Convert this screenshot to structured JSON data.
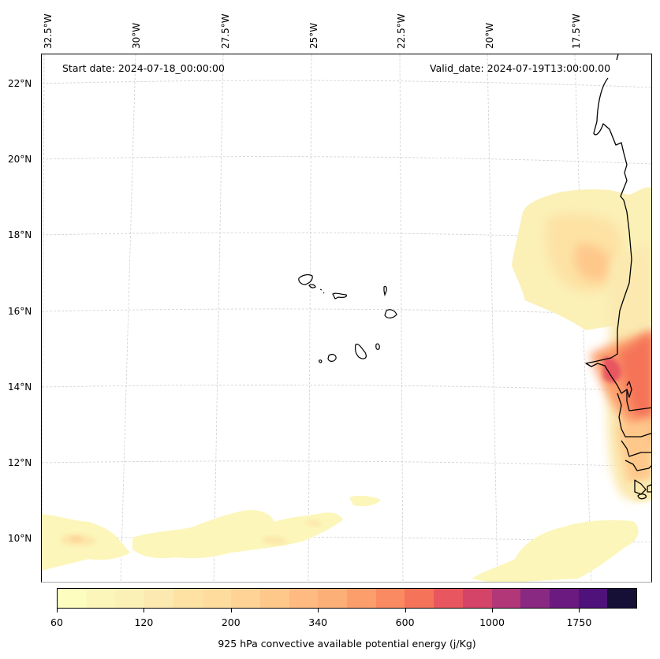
{
  "map": {
    "annotations": {
      "start_date": "Start date: 2024-07-18_00:00:00",
      "valid_date": "Valid_date: 2024-07-19T13:00:00.00"
    },
    "longitude_labels": [
      "32.5°W",
      "30°W",
      "27.5°W",
      "25°W",
      "22.5°W",
      "20°W",
      "17.5°W"
    ],
    "latitude_labels": [
      "22°N",
      "20°N",
      "18°N",
      "16°N",
      "14°N",
      "12°N",
      "10°N"
    ],
    "extent": {
      "lon_min": -32.5,
      "lon_max": -15.5,
      "lat_min": 8.9,
      "lat_max": 22.8
    },
    "features": [
      "West African coastline (Mauritania, Senegal, Gambia, Guinea-Bissau)",
      "Cape Verde islands"
    ],
    "field_regions": [
      {
        "name": "west-africa-plume",
        "peak_level": "1000",
        "description": "High CAPE over Senegal coast and inland"
      },
      {
        "name": "offshore-plume",
        "peak_level": "340",
        "description": "Moderate CAPE west of Mauritania coast"
      },
      {
        "name": "southern-band-west",
        "peak_level": "160",
        "description": "Low CAPE band near 10°N, 32°W–25°W"
      },
      {
        "name": "southern-band-east",
        "peak_level": "100",
        "description": "Low CAPE band near 9–10°N, 20°W–16°W"
      }
    ]
  },
  "colorbar": {
    "title": "925 hPa convective available potential energy (j/Kg)",
    "tick_labels": [
      "60",
      "120",
      "200",
      "340",
      "600",
      "1000",
      "1750"
    ],
    "colors": [
      "#fcfdbf",
      "#fcf6ba",
      "#fbf0b6",
      "#fbe9b0",
      "#fde2a4",
      "#fddc9e",
      "#fed395",
      "#fec88b",
      "#feba80",
      "#fdaf78",
      "#fc9e6c",
      "#f98a61",
      "#f57358",
      "#e85760",
      "#d34468",
      "#b23779",
      "#8a2981",
      "#6b1b80",
      "#4f127b",
      "#160f36"
    ],
    "colormap": "magma_r"
  }
}
